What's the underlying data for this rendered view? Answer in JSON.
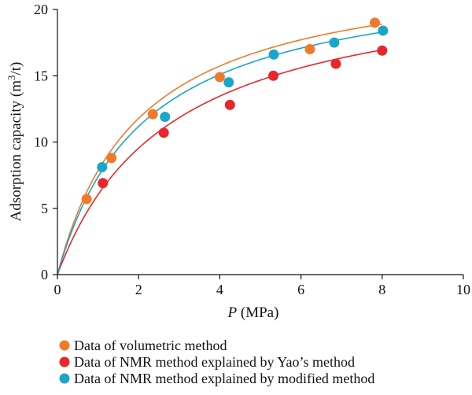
{
  "chart_data": {
    "type": "scatter",
    "xlabel": {
      "italic": "P",
      "rest": " (MPa)"
    },
    "ylabel": {
      "prefix": "Adsorption capacity (m",
      "sup": "3",
      "suffix": "/t)"
    },
    "xlim": [
      0,
      10
    ],
    "ylim": [
      0,
      20
    ],
    "xticks": [
      "0",
      "2",
      "4",
      "6",
      "8",
      "10"
    ],
    "yticks": [
      "0",
      "5",
      "10",
      "15",
      "20"
    ],
    "grid": false,
    "legend_position": "bottom",
    "series": [
      {
        "name": "Data of volumetric method",
        "color": "#F07A2A",
        "points": [
          {
            "x": 0.72,
            "y": 5.7
          },
          {
            "x": 1.33,
            "y": 8.8
          },
          {
            "x": 2.35,
            "y": 12.1
          },
          {
            "x": 4.0,
            "y": 14.9
          },
          {
            "x": 6.22,
            "y": 17.0
          },
          {
            "x": 7.82,
            "y": 19.0
          }
        ],
        "fit": {
          "model": "langmuir",
          "a": 23.66,
          "b": 0.496
        }
      },
      {
        "name": "Data of NMR method explained by Yao’s method",
        "color": "#E8262B",
        "points": [
          {
            "x": 1.12,
            "y": 6.9
          },
          {
            "x": 2.62,
            "y": 10.7
          },
          {
            "x": 4.25,
            "y": 12.8
          },
          {
            "x": 5.32,
            "y": 15.0
          },
          {
            "x": 6.86,
            "y": 15.9
          },
          {
            "x": 8.0,
            "y": 16.9
          }
        ],
        "fit": {
          "model": "langmuir",
          "a": 22.86,
          "b": 0.358
        }
      },
      {
        "name": "Data of NMR method explained by modified method",
        "color": "#1AA6C8",
        "points": [
          {
            "x": 1.1,
            "y": 8.1
          },
          {
            "x": 2.65,
            "y": 11.9
          },
          {
            "x": 4.22,
            "y": 14.5
          },
          {
            "x": 5.33,
            "y": 16.6
          },
          {
            "x": 6.82,
            "y": 17.5
          },
          {
            "x": 8.02,
            "y": 18.4
          }
        ],
        "fit": {
          "model": "langmuir",
          "a": 23.2,
          "b": 0.465
        }
      }
    ]
  }
}
